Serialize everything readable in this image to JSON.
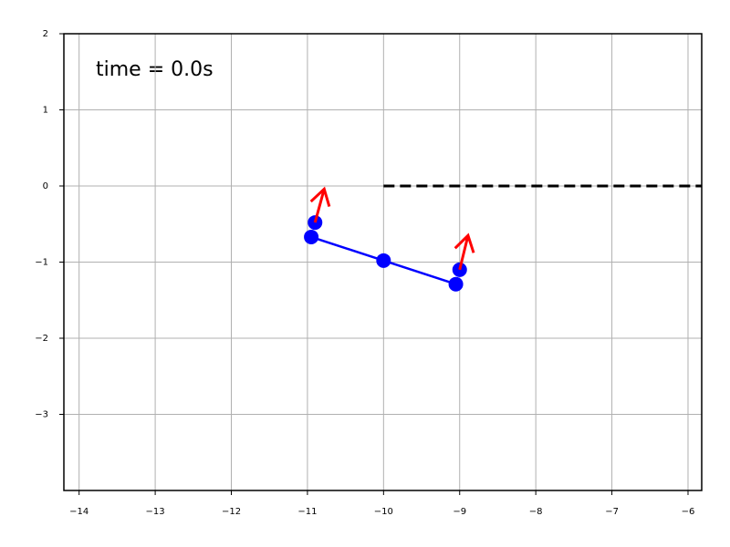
{
  "chart_data": {
    "type": "line",
    "annotation": "time = 0.0s",
    "xlim": [
      -14.2,
      -5.82
    ],
    "ylim": [
      -4,
      2
    ],
    "xticks": [
      {
        "value": -14,
        "label": "−14"
      },
      {
        "value": -13,
        "label": "−13"
      },
      {
        "value": -12,
        "label": "−12"
      },
      {
        "value": -11,
        "label": "−11"
      },
      {
        "value": -10,
        "label": "−10"
      },
      {
        "value": -9,
        "label": "−9"
      },
      {
        "value": -8,
        "label": "−8"
      },
      {
        "value": -7,
        "label": "−7"
      },
      {
        "value": -6,
        "label": "−6"
      }
    ],
    "yticks": [
      {
        "value": -3,
        "label": "−3"
      },
      {
        "value": -2,
        "label": "−2"
      },
      {
        "value": -1,
        "label": "−1"
      },
      0,
      1,
      2
    ],
    "grid": true,
    "series": [
      {
        "x": [
          -10.95,
          -10,
          -9.05
        ],
        "values": [
          -0.67,
          -0.98,
          -1.29
        ],
        "color": "#0000ff",
        "style": "solid",
        "markers": true
      },
      {
        "x": [
          -10,
          -5.82
        ],
        "values": [
          0,
          0
        ],
        "color": "#000000",
        "style": "dashed",
        "markers": false
      }
    ],
    "scatter": {
      "x": [
        -10.9,
        -9.0
      ],
      "values": [
        -0.48,
        -1.1
      ],
      "color": "#0000ff"
    },
    "arrows": {
      "x": [
        -10.9,
        -9.0
      ],
      "values": [
        -0.48,
        -1.1
      ],
      "x_end": [
        -10.78,
        -8.89
      ],
      "values_end": [
        -0.04,
        -0.65
      ],
      "color": "#ff0000"
    }
  }
}
